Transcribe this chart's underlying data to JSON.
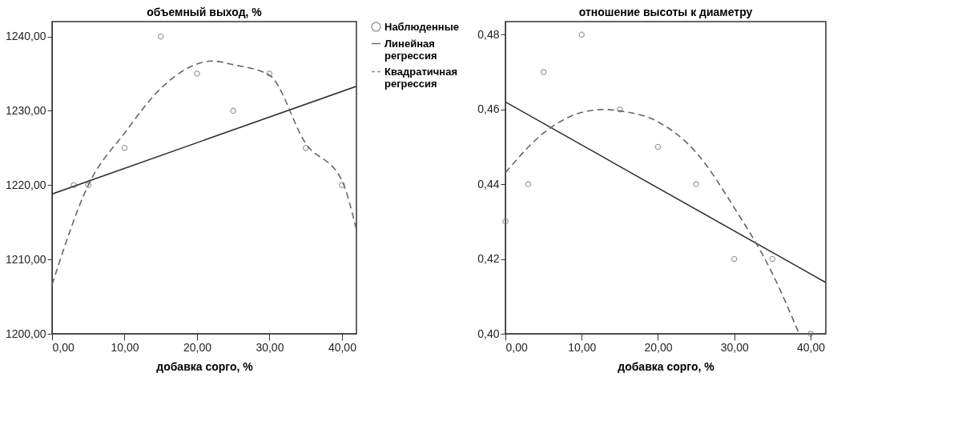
{
  "chart_data": [
    {
      "type": "scatter",
      "title": "объемный выход, %",
      "xlabel": "добавка сорго, %",
      "xlim": [
        0,
        42
      ],
      "ylim": [
        1200,
        1242
      ],
      "xticks": [
        {
          "value": 0,
          "label": "0,00"
        },
        {
          "value": 10,
          "label": "10,00"
        },
        {
          "value": 20,
          "label": "20,00"
        },
        {
          "value": 30,
          "label": "30,00"
        },
        {
          "value": 40,
          "label": "40,00"
        }
      ],
      "yticks": [
        {
          "value": 1200,
          "label": "1200,00"
        },
        {
          "value": 1210,
          "label": "1210,00"
        },
        {
          "value": 1220,
          "label": "1220,00"
        },
        {
          "value": 1230,
          "label": "1230,00"
        },
        {
          "value": 1240,
          "label": "1240,00"
        }
      ],
      "grid": false,
      "legend": "right",
      "series": [
        {
          "name": "Наблюденные",
          "type": "scatter",
          "marker": "circle",
          "color": "#777777",
          "x": [
            3,
            5,
            10,
            15,
            20,
            25,
            30,
            35,
            40
          ],
          "values": [
            1220,
            1220,
            1225,
            1240,
            1235,
            1230,
            1235,
            1225,
            1220
          ]
        },
        {
          "name": "Линейная регрессия",
          "type": "line",
          "line_style": "solid",
          "color": "#333333",
          "x": [
            0,
            42
          ],
          "values": [
            1218.8,
            1233.3
          ]
        },
        {
          "name": "Квадратичная регрессия",
          "type": "line",
          "line_style": "dashed",
          "color": "#666666",
          "x": [
            0,
            5,
            10,
            15,
            20,
            22,
            25,
            30,
            35,
            40,
            42
          ],
          "values": [
            1206.6,
            1220,
            1227,
            1233,
            1236.3,
            1236.7,
            1236.2,
            1234.8,
            1225.6,
            1220.6,
            1214
          ]
        }
      ]
    },
    {
      "type": "scatter",
      "title": "отношение высоты к диаметру",
      "xlabel": "добавка сорго, %",
      "xlim": [
        0,
        42
      ],
      "ylim": [
        0.4,
        0.4835
      ],
      "xticks": [
        {
          "value": 0,
          "label": "0,00"
        },
        {
          "value": 10,
          "label": "10,00"
        },
        {
          "value": 20,
          "label": "20,00"
        },
        {
          "value": 30,
          "label": "30,00"
        },
        {
          "value": 40,
          "label": "40,00"
        }
      ],
      "yticks": [
        {
          "value": 0.4,
          "label": "0,40"
        },
        {
          "value": 0.42,
          "label": "0,42"
        },
        {
          "value": 0.44,
          "label": "0,44"
        },
        {
          "value": 0.46,
          "label": "0,46"
        },
        {
          "value": 0.48,
          "label": "0,48"
        }
      ],
      "grid": false,
      "series": [
        {
          "type": "scatter",
          "marker": "circle",
          "color": "#777777",
          "x": [
            0,
            3,
            5,
            10,
            15,
            20,
            25,
            30,
            35,
            40
          ],
          "values": [
            0.43,
            0.44,
            0.47,
            0.48,
            0.46,
            0.45,
            0.44,
            0.42,
            0.42,
            0.4
          ]
        },
        {
          "type": "line",
          "line_style": "solid",
          "color": "#333333",
          "x": [
            0,
            42
          ],
          "values": [
            0.462,
            0.4137
          ]
        },
        {
          "type": "line",
          "line_style": "dashed",
          "color": "#666666",
          "x": [
            0,
            5,
            10,
            13,
            15,
            20,
            25,
            30,
            35,
            38.5
          ],
          "values": [
            0.4431,
            0.4537,
            0.4592,
            0.46,
            0.4596,
            0.4567,
            0.4485,
            0.4337,
            0.4161,
            0.4
          ]
        }
      ]
    }
  ]
}
